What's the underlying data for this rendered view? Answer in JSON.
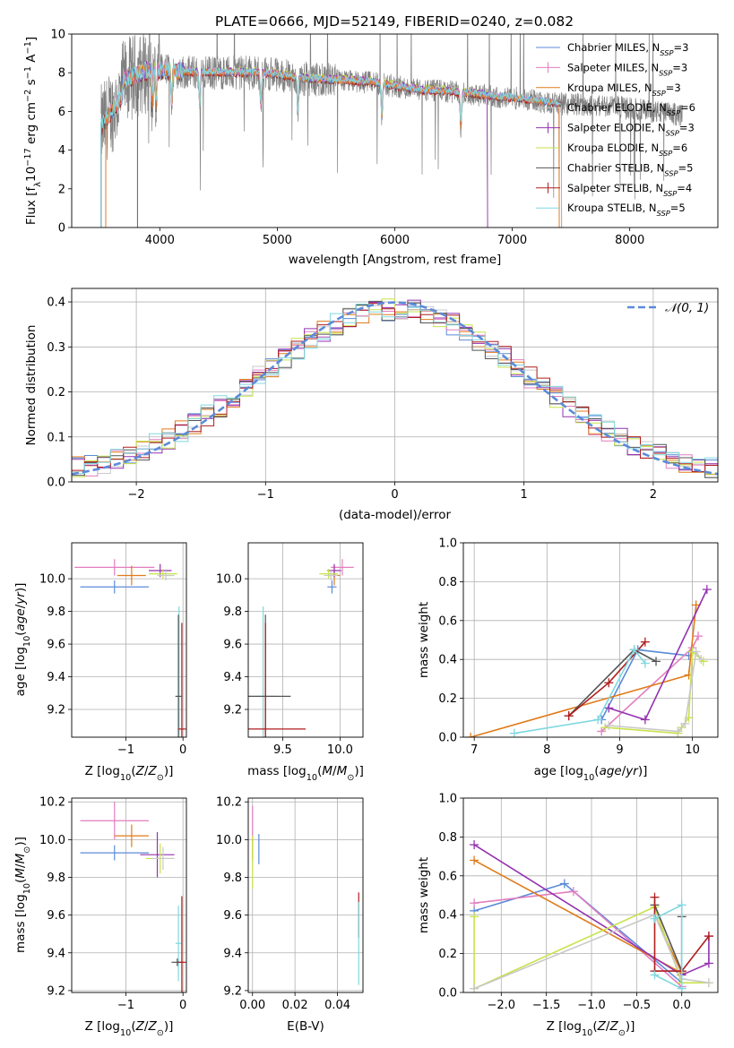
{
  "title": "PLATE=0666, MJD=52149, FIBERID=0240, z=0.082",
  "colors": {
    "Chabrier MILES": "#5b8bd9",
    "Salpeter MILES": "#e27ec0",
    "Kroupa MILES": "#e07b1a",
    "Chabrier ELODIE": "#c9c9c9",
    "Salpeter ELODIE": "#9432b0",
    "Kroupa ELODIE": "#c7e34a",
    "Chabrier STELIB": "#555555",
    "Salpeter STELIB": "#b01e1e",
    "Kroupa STELIB": "#7fd8e0",
    "spectrum": "#808080",
    "normal": "#5b8bd9"
  },
  "chart_data": [
    {
      "type": "line",
      "id": "spectrum",
      "title": "PLATE=0666, MJD=52149, FIBERID=0240, z=0.082",
      "xlabel": "wavelength [Angstrom, rest frame]",
      "ylabel": "Flux [fλ10⁻¹⁷ erg cm⁻² s⁻¹ A⁻¹]",
      "xlim": [
        3250,
        8750
      ],
      "ylim": [
        0,
        10
      ],
      "xticks": [
        4000,
        5000,
        6000,
        7000,
        8000
      ],
      "yticks": [
        0,
        2,
        4,
        6,
        8,
        10
      ],
      "legend_position": "top-right",
      "legend": [
        {
          "label": "Chabrier MILES, N",
          "sub": "SSP",
          "suffix": "=3",
          "key": "Chabrier MILES"
        },
        {
          "label": "Salpeter MILES, N",
          "sub": "SSP",
          "suffix": "=3",
          "key": "Salpeter MILES"
        },
        {
          "label": "Kroupa MILES, N",
          "sub": "SSP",
          "suffix": "=3",
          "key": "Kroupa MILES"
        },
        {
          "label": "Chabrier ELODIE, N",
          "sub": "SSP",
          "suffix": "=6",
          "key": "Chabrier ELODIE"
        },
        {
          "label": "Salpeter ELODIE, N",
          "sub": "SSP",
          "suffix": "=3",
          "key": "Salpeter ELODIE"
        },
        {
          "label": "Kroupa ELODIE, N",
          "sub": "SSP",
          "suffix": "=6",
          "key": "Kroupa ELODIE"
        },
        {
          "label": "Chabrier STELIB, N",
          "sub": "SSP",
          "suffix": "=5",
          "key": "Chabrier STELIB"
        },
        {
          "label": "Salpeter STELIB, N",
          "sub": "SSP",
          "suffix": "=4",
          "key": "Salpeter STELIB"
        },
        {
          "label": "Kroupa STELIB, N",
          "sub": "SSP",
          "suffix": "=5",
          "key": "Kroupa STELIB"
        }
      ],
      "continuum": {
        "x": [
          3500,
          3700,
          3900,
          4100,
          4300,
          4500,
          4800,
          5000,
          5200,
          5500,
          5800,
          6000,
          6200,
          6500,
          6800,
          7000,
          7400,
          7800,
          8200,
          8450
        ],
        "y": [
          5.8,
          7.6,
          8.1,
          8.1,
          8.0,
          8.0,
          8.0,
          7.9,
          7.7,
          7.6,
          7.5,
          7.3,
          7.1,
          7.0,
          6.8,
          6.7,
          6.4,
          6.3,
          6.0,
          5.8
        ]
      },
      "notes_absorption_x": [
        3934,
        3968,
        4102,
        4340,
        4861,
        5175,
        5890,
        6563
      ]
    },
    {
      "type": "bar",
      "id": "residuals",
      "xlabel": "(data-model)/error",
      "ylabel": "Normed distribution",
      "xlim": [
        -2.5,
        2.5
      ],
      "ylim": [
        0,
        0.43
      ],
      "xticks": [
        -2,
        -1,
        0,
        1,
        2
      ],
      "yticks": [
        0.0,
        0.1,
        0.2,
        0.3,
        0.4
      ],
      "legend": "𝒩(0, 1)",
      "legend_position": "top-right",
      "bin_width": 0.1,
      "bins_from": -2.5
    },
    {
      "type": "scatter",
      "id": "age_vs_Z",
      "xlabel": "Z [log₁₀(Z/Z⊙)]",
      "ylabel": "age  [log₁₀(age/yr)]",
      "xlim": [
        -1.95,
        0.06
      ],
      "ylim": [
        9.03,
        10.22
      ],
      "xticks": [
        -1,
        0
      ],
      "yticks": [
        9.2,
        9.4,
        9.6,
        9.8,
        10.0
      ],
      "points": [
        {
          "series": "Salpeter MILES",
          "x": -1.2,
          "y": 10.07,
          "xerr": 0.7,
          "yerr": 0.05
        },
        {
          "series": "Chabrier MILES",
          "x": -1.2,
          "y": 9.95,
          "xerr": 0.6,
          "yerr": 0.04
        },
        {
          "series": "Kroupa MILES",
          "x": -0.9,
          "y": 10.02,
          "xerr": 0.25,
          "yerr": 0.06
        },
        {
          "series": "Salpeter ELODIE",
          "x": -0.4,
          "y": 10.05,
          "xerr": 0.2,
          "yerr": 0.04
        },
        {
          "series": "Kroupa ELODIE",
          "x": -0.35,
          "y": 10.03,
          "xerr": 0.25,
          "yerr": 0.03
        },
        {
          "series": "Chabrier ELODIE",
          "x": -0.3,
          "y": 10.02,
          "xerr": 0.15,
          "yerr": 0.03
        },
        {
          "series": "Kroupa STELIB",
          "x": -0.07,
          "y": 9.28,
          "xerr": 0.07,
          "yerr": 0.55
        },
        {
          "series": "Chabrier STELIB",
          "x": -0.08,
          "y": 9.28,
          "xerr": 0.05,
          "yerr": 0.5
        },
        {
          "series": "Salpeter STELIB",
          "x": -0.02,
          "y": 9.08,
          "xerr": 0.07,
          "yerr": 0.65
        }
      ]
    },
    {
      "type": "scatter",
      "id": "age_vs_mass",
      "xlabel": "mass [log₁₀(M/M⊙)]",
      "xlim": [
        9.2,
        10.2
      ],
      "ylim": [
        9.03,
        10.22
      ],
      "xticks": [
        9.5,
        10.0
      ],
      "yticks": [
        9.2,
        9.4,
        9.6,
        9.8,
        10.0
      ],
      "points": [
        {
          "series": "Salpeter MILES",
          "x": 10.02,
          "y": 10.07,
          "xerr": 0.1,
          "yerr": 0.05
        },
        {
          "series": "Chabrier MILES",
          "x": 9.93,
          "y": 9.95,
          "xerr": 0.04,
          "yerr": 0.04
        },
        {
          "series": "Kroupa MILES",
          "x": 9.95,
          "y": 10.02,
          "xerr": 0.05,
          "yerr": 0.06
        },
        {
          "series": "Salpeter ELODIE",
          "x": 9.95,
          "y": 10.05,
          "xerr": 0.06,
          "yerr": 0.04
        },
        {
          "series": "Kroupa ELODIE",
          "x": 9.9,
          "y": 10.03,
          "xerr": 0.08,
          "yerr": 0.03
        },
        {
          "series": "Chabrier ELODIE",
          "x": 9.92,
          "y": 10.02,
          "xerr": 0.06,
          "yerr": 0.03
        },
        {
          "series": "Kroupa STELIB",
          "x": 9.33,
          "y": 9.28,
          "xerr": 0.12,
          "yerr": 0.55
        },
        {
          "series": "Chabrier STELIB",
          "x": 9.35,
          "y": 9.28,
          "xerr": 0.22,
          "yerr": 0.5
        },
        {
          "series": "Salpeter STELIB",
          "x": 9.35,
          "y": 9.08,
          "xerr": 0.35,
          "yerr": 0.65
        }
      ]
    },
    {
      "type": "line",
      "id": "massweight_vs_age",
      "xlabel": "age  [log₁₀(age/yr)]",
      "ylabel": "mass weight",
      "xlim": [
        6.85,
        10.35
      ],
      "ylim": [
        0,
        1.0
      ],
      "xticks": [
        7,
        8,
        9,
        10
      ],
      "yticks": [
        0.0,
        0.2,
        0.4,
        0.6,
        0.8,
        1.0
      ],
      "series": [
        {
          "name": "Chabrier MILES",
          "x": [
            8.75,
            9.25,
            9.95
          ],
          "y": [
            0.09,
            0.45,
            0.42
          ]
        },
        {
          "name": "Salpeter MILES",
          "x": [
            8.75,
            10.0,
            10.08
          ],
          "y": [
            0.03,
            0.46,
            0.52
          ]
        },
        {
          "name": "Kroupa MILES",
          "x": [
            6.95,
            9.95,
            10.05
          ],
          "y": [
            0.0,
            0.32,
            0.68
          ]
        },
        {
          "name": "Salpeter ELODIE",
          "x": [
            8.85,
            9.35,
            10.2
          ],
          "y": [
            0.15,
            0.09,
            0.76
          ]
        },
        {
          "name": "Kroupa ELODIE",
          "x": [
            8.8,
            9.8,
            9.85,
            9.95,
            10.0,
            10.15
          ],
          "y": [
            0.05,
            0.02,
            0.05,
            0.1,
            0.44,
            0.39
          ]
        },
        {
          "name": "Chabrier ELODIE",
          "x": [
            8.85,
            9.8,
            9.9,
            10.05,
            10.12
          ],
          "y": [
            0.06,
            0.03,
            0.07,
            0.44,
            0.4
          ]
        },
        {
          "name": "Chabrier STELIB",
          "x": [
            8.3,
            9.2,
            9.5
          ],
          "y": [
            0.11,
            0.45,
            0.39
          ]
        },
        {
          "name": "Salpeter STELIB",
          "x": [
            8.3,
            8.85,
            9.35
          ],
          "y": [
            0.11,
            0.28,
            0.49
          ]
        },
        {
          "name": "Kroupa STELIB",
          "x": [
            7.55,
            8.7,
            9.2,
            9.35
          ],
          "y": [
            0.02,
            0.09,
            0.45,
            0.38
          ]
        }
      ]
    },
    {
      "type": "scatter",
      "id": "mass_vs_Z",
      "xlabel": "Z [log₁₀(Z/Z⊙)]",
      "ylabel": "mass [log₁₀(M/M⊙)]",
      "xlim": [
        -1.95,
        0.06
      ],
      "ylim": [
        9.19,
        10.22
      ],
      "xticks": [
        -1,
        0
      ],
      "yticks": [
        9.2,
        9.4,
        9.6,
        9.8,
        10.0,
        10.2
      ],
      "points": [
        {
          "series": "Salpeter MILES",
          "x": -1.2,
          "y": 10.1,
          "xerr": 0.6,
          "yerr": 0.1
        },
        {
          "series": "Chabrier MILES",
          "x": -1.2,
          "y": 9.93,
          "xerr": 0.6,
          "yerr": 0.04
        },
        {
          "series": "Kroupa MILES",
          "x": -0.9,
          "y": 10.02,
          "xerr": 0.3,
          "yerr": 0.06
        },
        {
          "series": "Salpeter ELODIE",
          "x": -0.45,
          "y": 9.92,
          "xerr": 0.3,
          "yerr": 0.12
        },
        {
          "series": "Kroupa ELODIE",
          "x": -0.4,
          "y": 9.9,
          "xerr": 0.25,
          "yerr": 0.08
        },
        {
          "series": "Chabrier ELODIE",
          "x": -0.35,
          "y": 9.9,
          "xerr": 0.2,
          "yerr": 0.06
        },
        {
          "series": "Kroupa STELIB",
          "x": -0.08,
          "y": 9.45,
          "xerr": 0.05,
          "yerr": 0.2
        },
        {
          "series": "Chabrier STELIB",
          "x": -0.1,
          "y": 9.35,
          "xerr": 0.1,
          "yerr": 0.02
        },
        {
          "series": "Salpeter STELIB",
          "x": -0.02,
          "y": 9.35,
          "xerr": 0.07,
          "yerr": 0.35
        }
      ]
    },
    {
      "type": "scatter",
      "id": "mass_vs_EBV",
      "xlabel": "E(B-V)",
      "xlim": [
        -0.002,
        0.052
      ],
      "ylim": [
        9.19,
        10.22
      ],
      "xticks": [
        0.0,
        0.02,
        0.04
      ],
      "yticks": [
        9.2,
        9.4,
        9.6,
        9.8,
        10.0,
        10.2
      ],
      "points": [
        {
          "series": "Salpeter MILES",
          "x": 0.0,
          "y": 10.08,
          "xerr": 0,
          "yerr": 0.1
        },
        {
          "series": "Chabrier MILES",
          "x": 0.003,
          "y": 9.95,
          "xerr": 0,
          "yerr": 0.08
        },
        {
          "series": "Kroupa MILES",
          "x": 0.0,
          "y": 9.95,
          "xerr": 0,
          "yerr": 0.06
        },
        {
          "series": "Kroupa ELODIE",
          "x": 0.0,
          "y": 9.88,
          "xerr": 0,
          "yerr": 0.14
        },
        {
          "series": "Salpeter STELIB",
          "x": 0.05,
          "y": 9.6,
          "xerr": 0,
          "yerr": 0.12
        },
        {
          "series": "Kroupa STELIB",
          "x": 0.05,
          "y": 9.45,
          "xerr": 0,
          "yerr": 0.22
        }
      ]
    },
    {
      "type": "line",
      "id": "massweight_vs_Z",
      "xlabel": "Z [log₁₀(Z/Z⊙)]",
      "ylabel": "mass weight",
      "xlim": [
        -2.42,
        0.4
      ],
      "ylim": [
        0,
        1.0
      ],
      "xticks": [
        -2.0,
        -1.5,
        -1.0,
        -0.5,
        0.0
      ],
      "yticks": [
        0.0,
        0.2,
        0.4,
        0.6,
        0.8,
        1.0
      ],
      "series": [
        {
          "name": "Chabrier MILES",
          "x": [
            -2.3,
            -1.3,
            0.0
          ],
          "y": [
            0.42,
            0.56,
            0.05
          ]
        },
        {
          "name": "Salpeter MILES",
          "x": [
            -2.3,
            -1.2,
            0.0
          ],
          "y": [
            0.46,
            0.52,
            0.03
          ]
        },
        {
          "name": "Kroupa MILES",
          "x": [
            -2.3,
            0.0,
            -0.3
          ],
          "y": [
            0.68,
            0.1,
            0.4
          ]
        },
        {
          "name": "Salpeter ELODIE",
          "x": [
            -2.3,
            0.0,
            0.3,
            0.3
          ],
          "y": [
            0.76,
            0.09,
            0.15,
            0.29
          ]
        },
        {
          "name": "Kroupa ELODIE",
          "x": [
            -2.3,
            -2.3,
            -0.3,
            0.0,
            0.3
          ],
          "y": [
            0.39,
            0.02,
            0.44,
            0.05,
            0.05
          ]
        },
        {
          "name": "Chabrier ELODIE",
          "x": [
            -2.3,
            -0.3,
            0.0,
            0.3
          ],
          "y": [
            0.02,
            0.4,
            0.07,
            0.05
          ]
        },
        {
          "name": "Chabrier STELIB",
          "x": [
            -0.3,
            0.0,
            0.0
          ],
          "y": [
            0.45,
            0.11,
            0.39
          ]
        },
        {
          "name": "Salpeter STELIB",
          "x": [
            -0.3,
            -0.3,
            0.0,
            0.3
          ],
          "y": [
            0.49,
            0.11,
            0.11,
            0.29
          ]
        },
        {
          "name": "Kroupa STELIB",
          "x": [
            -0.3,
            0.0,
            0.0,
            -0.3
          ],
          "y": [
            0.38,
            0.45,
            0.02,
            0.09
          ]
        }
      ]
    }
  ]
}
